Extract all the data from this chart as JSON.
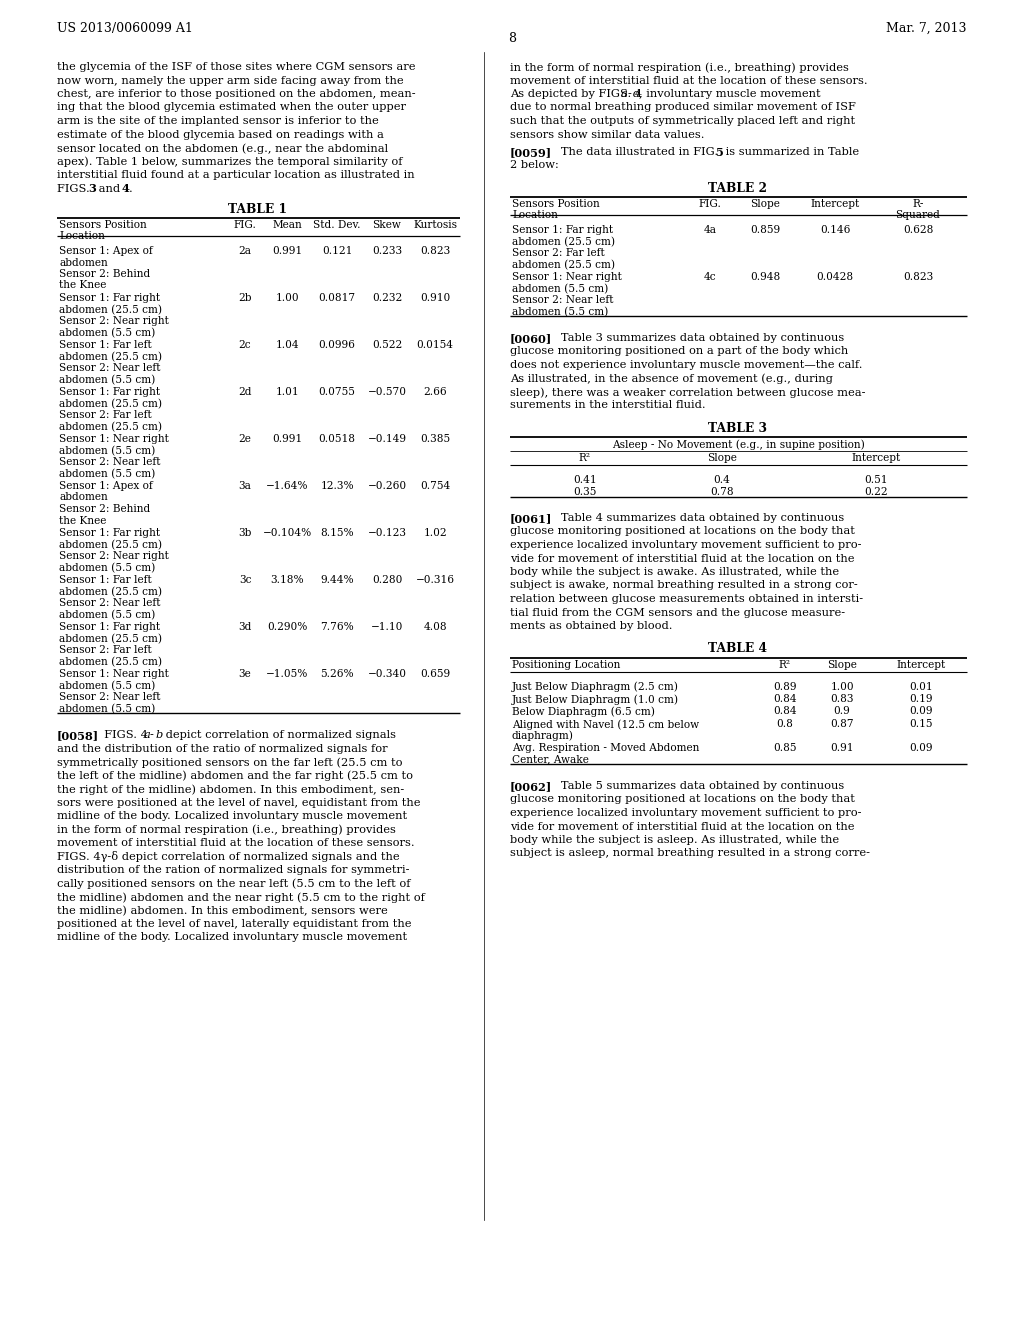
{
  "header_left": "US 2013/0060099 A1",
  "header_right": "Mar. 7, 2013",
  "page_number": "8",
  "bg_color": "#ffffff",
  "left_para1": "the glycemia of the ISF of those sites where CGM sensors are now worn, namely the upper arm side facing away from the chest, are inferior to those positioned on the abdomen, meaning that the blood glycemia estimated when the outer upper arm is the site of the implanted sensor is inferior to the estimate of the blood glycemia based on readings with a sensor located on the abdomen (e.g., near the abdominal apex). Table 1 below, summarizes the temporal similarity of interstitial fluid found at a particular location as illustrated in FIGS. ",
  "left_para1_bold": "3",
  "left_para1_mid": " and ",
  "left_para1_bold2": "4",
  "left_para1_end": ".",
  "table1_title": "TABLE 1",
  "table1_col_headers": [
    "Sensors Position\nLocation",
    "FIG.",
    "Mean",
    "Std. Dev.",
    "Skew",
    "Kurtosis"
  ],
  "table1_rows": [
    [
      "Sensor 1: Apex of\nabdomen\nSensor 2: Behind\nthe Knee",
      "2a",
      "0.991",
      "0.121",
      "0.233",
      "0.823"
    ],
    [
      "Sensor 1: Far right\nabdomen (25.5 cm)\nSensor 2: Near right\nabdomen (5.5 cm)",
      "2b",
      "1.00",
      "0.0817",
      "0.232",
      "0.910"
    ],
    [
      "Sensor 1: Far left\nabdomen (25.5 cm)\nSensor 2: Near left\nabdomen (5.5 cm)",
      "2c",
      "1.04",
      "0.0996",
      "0.522",
      "0.0154"
    ],
    [
      "Sensor 1: Far right\nabdomen (25.5 cm)\nSensor 2: Far left\nabdomen (25.5 cm)",
      "2d",
      "1.01",
      "0.0755",
      "−0.570",
      "2.66"
    ],
    [
      "Sensor 1: Near right\nabdomen (5.5 cm)\nSensor 2: Near left\nabdomen (5.5 cm)",
      "2e",
      "0.991",
      "0.0518",
      "−0.149",
      "0.385"
    ],
    [
      "Sensor 1: Apex of\nabdomen\nSensor 2: Behind\nthe Knee",
      "3a",
      "−1.64%",
      "12.3%",
      "−0.260",
      "0.754"
    ],
    [
      "Sensor 1: Far right\nabdomen (25.5 cm)\nSensor 2: Near right\nabdomen (5.5 cm)",
      "3b",
      "−0.104%",
      "8.15%",
      "−0.123",
      "1.02"
    ],
    [
      "Sensor 1: Far left\nabdomen (25.5 cm)\nSensor 2: Near left\nabdomen (5.5 cm)",
      "3c",
      "3.18%",
      "9.44%",
      "0.280",
      "−0.316"
    ],
    [
      "Sensor 1: Far right\nabdomen (25.5 cm)\nSensor 2: Far left\nabdomen (25.5 cm)",
      "3d",
      "0.290%",
      "7.76%",
      "−1.10",
      "4.08"
    ],
    [
      "Sensor 1: Near right\nabdomen (5.5 cm)\nSensor 2: Near left\nabdomen (5.5 cm)",
      "3e",
      "−1.05%",
      "5.26%",
      "−0.340",
      "0.659"
    ]
  ],
  "para_0058": "[0058]   FIGS. 4a-b depict correlation of normalized signals and the distribution of the ratio of normalized signals for symmetrically positioned sensors on the far left (25.5 cm to the left of the midline) abdomen and the far right (25.5 cm to the right of the midline) abdomen. In this embodiment, sensors were positioned at the level of navel, equidistant from the midline of the body. Localized involuntary muscle movement in the form of normal respiration (i.e., breathing) provides movement of interstitial fluid at the location of these sensors. FIGS. 4c-d depict correlation of normalized signals and the distribution of the ration of normalized signals for symmetrically positioned sensors on the near left (5.5 cm to the left of the midline) abdomen and the near right (5.5 cm to the right of the midline) abdomen. In this embodiment, sensors were positioned at the level of navel, laterally equidistant from the midline of the body. Localized involuntary muscle movement",
  "right_para1": "in the form of normal respiration (i.e., breathing) provides movement of interstitial fluid at the location of these sensors. As depicted by FIGS. 4a-d, involuntary muscle movement due to normal breathing produced similar movement of ISF such that the outputs of symmetrically placed left and right sensors show similar data values.",
  "right_para2": "[0059]   The data illustrated in FIG. 5 is summarized in Table 2 below:",
  "table2_title": "TABLE 2",
  "table2_col_headers": [
    "Sensors Position\nLocation",
    "FIG.",
    "Slope",
    "Intercept",
    "R-\nSquared"
  ],
  "table2_rows": [
    [
      "Sensor 1: Far right\nabdomen (25.5 cm)\nSensor 2: Far left\nabdomen (25.5 cm)",
      "4a",
      "0.859",
      "0.146",
      "0.628"
    ],
    [
      "Sensor 1: Near right\nabdomen (5.5 cm)\nSensor 2: Near left\nabdomen (5.5 cm)",
      "4c",
      "0.948",
      "0.0428",
      "0.823"
    ]
  ],
  "para_0060": "[0060]   Table 3 summarizes data obtained by continuous glucose monitoring positioned on a part of the body which does not experience involuntary muscle movement—the calf. As illustrated, in the absence of movement (e.g., during sleep), there was a weaker correlation between glucose measurements in the interstitial fluid.",
  "table3_title": "TABLE 3",
  "table3_subheader": "Asleep - No Movement (e.g., in supine position)",
  "table3_col_headers": [
    "R²",
    "Slope",
    "Intercept"
  ],
  "table3_rows": [
    [
      "0.41",
      "0.4",
      "0.51"
    ],
    [
      "0.35",
      "0.78",
      "0.22"
    ]
  ],
  "para_0061": "[0061]   Table 4 summarizes data obtained by continuous glucose monitoring positioned at locations on the body that experience localized involuntary movement sufficient to provide for movement of interstitial fluid at the location on the body while the subject is awake. As illustrated, while the subject is awake, normal breathing resulted in a strong correlation between glucose measurements obtained in interstitial fluid from the CGM sensors and the glucose measurements as obtained by blood.",
  "table4_title": "TABLE 4",
  "table4_col_headers": [
    "Positioning Location",
    "R²",
    "Slope",
    "Intercept"
  ],
  "table4_rows": [
    [
      "Just Below Diaphragm (2.5 cm)",
      "0.89",
      "1.00",
      "0.01"
    ],
    [
      "Just Below Diaphragm (1.0 cm)",
      "0.84",
      "0.83",
      "0.19"
    ],
    [
      "Below Diaphragm (6.5 cm)",
      "0.84",
      "0.9",
      "0.09"
    ],
    [
      "Aligned with Navel (12.5 cm below\ndiaphragm)",
      "0.8",
      "0.87",
      "0.15"
    ],
    [
      "Avg. Respiration - Moved Abdomen\nCenter, Awake",
      "0.85",
      "0.91",
      "0.09"
    ]
  ],
  "para_0062": "[0062]   Table 5 summarizes data obtained by continuous glucose monitoring positioned at locations on the body that experience localized involuntary movement sufficient to provide for movement of interstitial fluid at the location on the body while the subject is asleep. As illustrated, while the subject is asleep, normal breathing resulted in a strong corre-"
}
